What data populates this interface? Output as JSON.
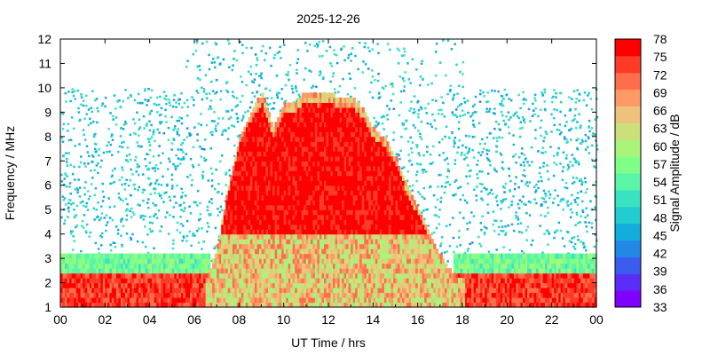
{
  "chart_data": {
    "type": "heatmap",
    "title": "2025-12-26",
    "xlabel": "UT Time / hrs",
    "ylabel": "Frequency / MHz",
    "xlim": [
      0,
      24
    ],
    "ylim": [
      1,
      12
    ],
    "x_ticks": [
      "00",
      "02",
      "04",
      "06",
      "08",
      "10",
      "12",
      "14",
      "16",
      "18",
      "20",
      "22",
      "00"
    ],
    "y_ticks": [
      "1",
      "2",
      "3",
      "4",
      "5",
      "6",
      "7",
      "8",
      "9",
      "10",
      "11",
      "12"
    ],
    "colorbar": {
      "label": "Signal Amplitude / dB",
      "range": [
        33,
        78
      ],
      "ticks": [
        "78",
        "75",
        "72",
        "69",
        "66",
        "63",
        "60",
        "57",
        "54",
        "51",
        "48",
        "45",
        "42",
        "39",
        "36",
        "33"
      ],
      "colors": [
        "#8000ff",
        "#5a2ef7",
        "#3a5df0",
        "#2188e6",
        "#12aedb",
        "#22cdd0",
        "#3ae3c0",
        "#5af5a6",
        "#80ff88",
        "#a8f57a",
        "#cce07a",
        "#eec27a",
        "#ff9a66",
        "#ff6e4c",
        "#ff3a26",
        "#ff0000"
      ]
    },
    "daytime_echo": {
      "hours": [
        6.5,
        7.0,
        7.5,
        8.0,
        8.5,
        9.0,
        9.5,
        10.0,
        10.5,
        11.0,
        11.5,
        12.0,
        12.5,
        13.0,
        13.5,
        14.0,
        14.5,
        15.0,
        15.5,
        16.0,
        16.5,
        17.0,
        17.5,
        18.0
      ],
      "top_mhz": [
        2.0,
        3.5,
        6.0,
        8.0,
        9.0,
        9.7,
        8.2,
        9.3,
        9.4,
        9.8,
        9.6,
        9.8,
        9.4,
        9.6,
        9.0,
        8.2,
        7.8,
        7.0,
        5.8,
        4.8,
        3.8,
        3.0,
        2.3,
        2.0
      ],
      "max_db": 78
    },
    "noise_band_mhz": [
      4.0,
      10.0
    ],
    "night_low_band_mhz": [
      1.0,
      2.3
    ],
    "night_high_band_hours": [
      5.5,
      18.0
    ]
  }
}
